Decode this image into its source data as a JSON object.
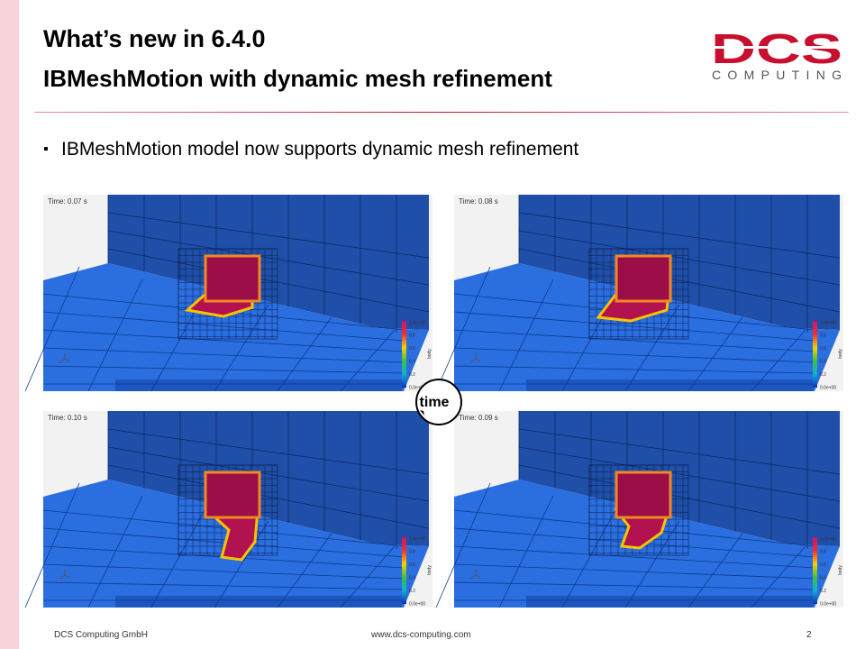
{
  "header": {
    "title": "What’s new in 6.4.0",
    "subtitle": "IBMeshMotion with dynamic mesh refinement"
  },
  "logo": {
    "mark": "DCS",
    "wordmark": "COMPUTING"
  },
  "bullets": [
    "IBMeshMotion model now supports dynamic mesh refinement"
  ],
  "panels": [
    {
      "time": "Time: 0.07 s"
    },
    {
      "time": "Time: 0.08 s"
    },
    {
      "time": "Time: 0.10 s"
    },
    {
      "time": "Time: 0.09 s"
    }
  ],
  "colorbar": {
    "ticks": [
      "1.0e+00",
      "0.8",
      "0.6",
      "0.4",
      "0.2",
      "0.0e+00"
    ],
    "label": "body"
  },
  "cycle_label": "time",
  "footer": {
    "company": "DCS Computing GmbH",
    "website": "www.dcs-computing.com",
    "page": 2
  }
}
